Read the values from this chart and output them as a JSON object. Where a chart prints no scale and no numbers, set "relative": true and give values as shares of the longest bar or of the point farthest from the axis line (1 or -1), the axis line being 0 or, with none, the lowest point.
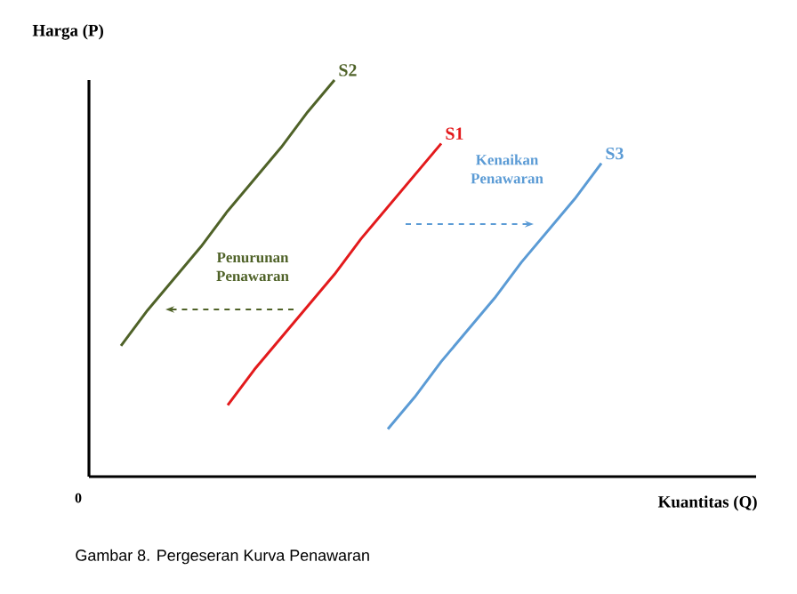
{
  "chart_data": {
    "type": "line",
    "relative": true,
    "ylabel": "Harga (P)",
    "xlabel": "Kuantitas (Q)",
    "marker": "none",
    "line_style": "solid",
    "categories": [
      null,
      null,
      null,
      null,
      null,
      null,
      null,
      null,
      null,
      null,
      null,
      null,
      null,
      null,
      null,
      null,
      null,
      null,
      null,
      null,
      null,
      null,
      null,
      null
    ],
    "series": [
      {
        "name": "S2",
        "color": "#4f6228",
        "values": [
          0.33,
          0.42,
          0.5,
          0.58,
          0.67,
          0.75,
          0.83,
          0.92,
          1.0,
          null,
          null,
          null,
          null,
          null,
          null,
          null,
          null,
          null,
          null,
          null,
          null,
          null,
          null,
          null
        ]
      },
      {
        "name": "S1",
        "color": "#e31a1c",
        "values": [
          null,
          null,
          null,
          null,
          0.18,
          0.27,
          0.35,
          0.43,
          0.51,
          0.6,
          0.68,
          0.76,
          0.84,
          null,
          null,
          null,
          null,
          null,
          null,
          null,
          null,
          null,
          null,
          null
        ]
      },
      {
        "name": "S3",
        "color": "#5b9bd5",
        "values": [
          null,
          null,
          null,
          null,
          null,
          null,
          null,
          null,
          null,
          null,
          0.12,
          0.2,
          0.29,
          0.37,
          0.45,
          0.54,
          0.62,
          0.7,
          0.79,
          null,
          null,
          null,
          null,
          null
        ]
      }
    ],
    "annotations": [
      "Penurunan Penawaran",
      "Kenaikan Penawaran",
      "0",
      "Gambar 8.     Pergeseran Kurva Penawaran"
    ]
  }
}
